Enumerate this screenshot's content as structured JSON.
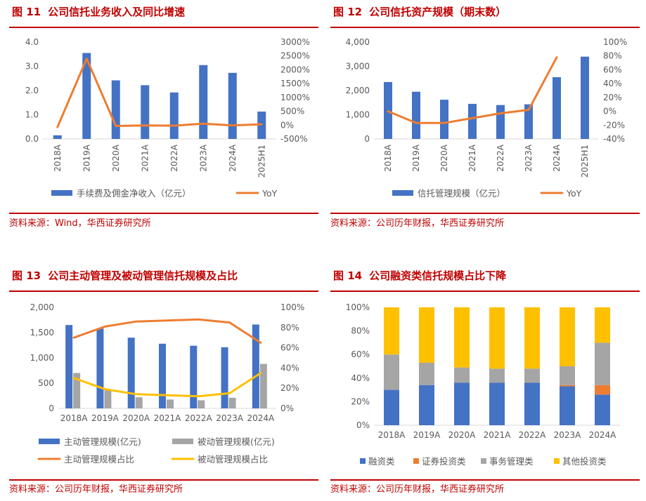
{
  "panels": [
    {
      "title_num": "图 11",
      "title": "公司信托业务收入及同比增速",
      "source": "资料来源：Wind，华西证券研究所"
    },
    {
      "title_num": "图 12",
      "title": "公司信托资产规模（期末数）",
      "source": "资料来源：公司历年财报，华西证券研究所"
    },
    {
      "title_num": "图 13",
      "title": "公司主动管理及被动管理信托规模及占比",
      "source": "资料来源：公司历年财报，华西证券研究所"
    },
    {
      "title_num": "图 14",
      "title": "公司融资类信托规模占比下降",
      "source": "资料来源：公司历年财报，华西证券研究所"
    }
  ],
  "colors": {
    "blue": "#4472c4",
    "orange": "#ed7d31",
    "gray": "#a5a5a5",
    "yellow": "#ffc000",
    "accent": "#c00000"
  },
  "chart_data": [
    {
      "type": "bar",
      "categories": [
        "2018A",
        "2019A",
        "2020A",
        "2021A",
        "2022A",
        "2023A",
        "2024A",
        "2025H1"
      ],
      "series": [
        {
          "name": "手续费及佣金净收入（亿元）",
          "type": "bar",
          "axis": "left",
          "values": [
            0.15,
            3.55,
            2.42,
            2.22,
            1.92,
            3.05,
            2.73,
            1.13
          ]
        },
        {
          "name": "YoY",
          "type": "line",
          "axis": "right",
          "values": [
            -70,
            2400,
            -30,
            -10,
            -20,
            50,
            -10,
            30
          ]
        }
      ],
      "yticks": [
        "0.0",
        "1.0",
        "2.0",
        "3.0",
        "4.0"
      ],
      "ylim": [
        0,
        4
      ],
      "y2ticks": [
        "-500%",
        "0%",
        "500%",
        "1000%",
        "1500%",
        "2000%",
        "2500%",
        "3000%"
      ],
      "y2lim": [
        -500,
        3000
      ]
    },
    {
      "type": "bar",
      "categories": [
        "2018A",
        "2019A",
        "2020A",
        "2021A",
        "2022A",
        "2023A",
        "2024A",
        "2025H1"
      ],
      "series": [
        {
          "name": "信托管理规模（亿元）",
          "type": "bar",
          "axis": "left",
          "values": [
            2350,
            1950,
            1620,
            1450,
            1400,
            1430,
            2550,
            3400
          ]
        },
        {
          "name": "YoY",
          "type": "line",
          "axis": "right",
          "values": [
            0,
            -17,
            -17,
            -10,
            -3,
            2,
            78,
            null
          ]
        }
      ],
      "yticks": [
        "0",
        "1,000",
        "2,000",
        "3,000",
        "4,000"
      ],
      "ylim": [
        0,
        4000
      ],
      "y2ticks": [
        "-40%",
        "-20%",
        "0%",
        "20%",
        "40%",
        "60%",
        "80%",
        "100%"
      ],
      "y2lim": [
        -40,
        100
      ]
    },
    {
      "type": "bar",
      "categories": [
        "2018A",
        "2019A",
        "2020A",
        "2021A",
        "2022A",
        "2023A",
        "2024A"
      ],
      "series": [
        {
          "name": "主动管理规模(亿元)",
          "type": "bar",
          "axis": "left",
          "values": [
            1650,
            1580,
            1400,
            1280,
            1240,
            1210,
            1660
          ]
        },
        {
          "name": "被动管理规模(亿元)",
          "type": "bar",
          "axis": "left",
          "values": [
            700,
            360,
            220,
            175,
            160,
            210,
            880
          ]
        },
        {
          "name": "主动管理规模占比",
          "type": "line",
          "axis": "right",
          "values": [
            70,
            81,
            86,
            87,
            88,
            85,
            65
          ]
        },
        {
          "name": "被动管理规模占比",
          "type": "line",
          "axis": "right",
          "values": [
            30,
            19,
            14,
            13,
            12,
            15,
            35
          ]
        }
      ],
      "yticks": [
        "0",
        "500",
        "1,000",
        "1,500",
        "2,000"
      ],
      "ylim": [
        0,
        2000
      ],
      "y2ticks": [
        "0%",
        "20%",
        "40%",
        "60%",
        "80%",
        "100%"
      ],
      "y2lim": [
        0,
        100
      ]
    },
    {
      "type": "bar",
      "stacked": true,
      "categories": [
        "2018A",
        "2019A",
        "2020A",
        "2021A",
        "2022A",
        "2023A",
        "2024A"
      ],
      "series": [
        {
          "name": "融资类",
          "values": [
            30,
            34,
            36,
            36,
            36,
            33,
            26
          ]
        },
        {
          "name": "证券投资类",
          "values": [
            0,
            0,
            0,
            0,
            0,
            1,
            8
          ]
        },
        {
          "name": "事务管理类",
          "values": [
            30,
            19,
            13,
            12,
            12,
            16,
            36
          ]
        },
        {
          "name": "其他投资类",
          "values": [
            40,
            47,
            51,
            52,
            52,
            50,
            30
          ]
        }
      ],
      "yticks": [
        "0%",
        "20%",
        "40%",
        "60%",
        "80%",
        "100%"
      ],
      "ylim": [
        0,
        100
      ]
    }
  ]
}
